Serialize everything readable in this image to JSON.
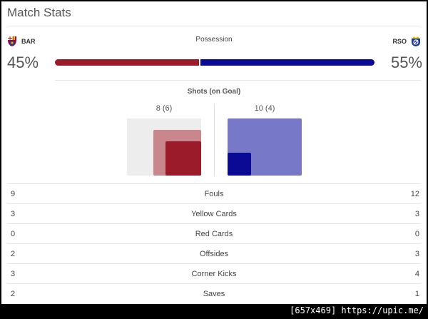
{
  "title": "Match Stats",
  "home_team": {
    "abbr": "BAR",
    "crest_icon": "fc-barcelona-crest-icon",
    "color": "#9b1b2a"
  },
  "away_team": {
    "abbr": "RSO",
    "crest_icon": "real-sociedad-crest-icon",
    "color": "#0a0a94"
  },
  "possession": {
    "label": "Possession",
    "home": "45%",
    "away": "55%",
    "home_value": 45,
    "away_value": 55
  },
  "shots": {
    "label": "Shots (on Goal)",
    "home_display": "8 (6)",
    "away_display": "10 (4)",
    "home_total": 8,
    "home_on_goal": 6,
    "away_total": 10,
    "away_on_goal": 4
  },
  "stats": [
    {
      "label": "Fouls",
      "home": "9",
      "away": "12"
    },
    {
      "label": "Yellow Cards",
      "home": "3",
      "away": "3"
    },
    {
      "label": "Red Cards",
      "home": "0",
      "away": "0"
    },
    {
      "label": "Offsides",
      "home": "2",
      "away": "3"
    },
    {
      "label": "Corner Kicks",
      "home": "3",
      "away": "4"
    },
    {
      "label": "Saves",
      "home": "2",
      "away": "1"
    }
  ],
  "credit": "[657x469] https://upic.me/"
}
